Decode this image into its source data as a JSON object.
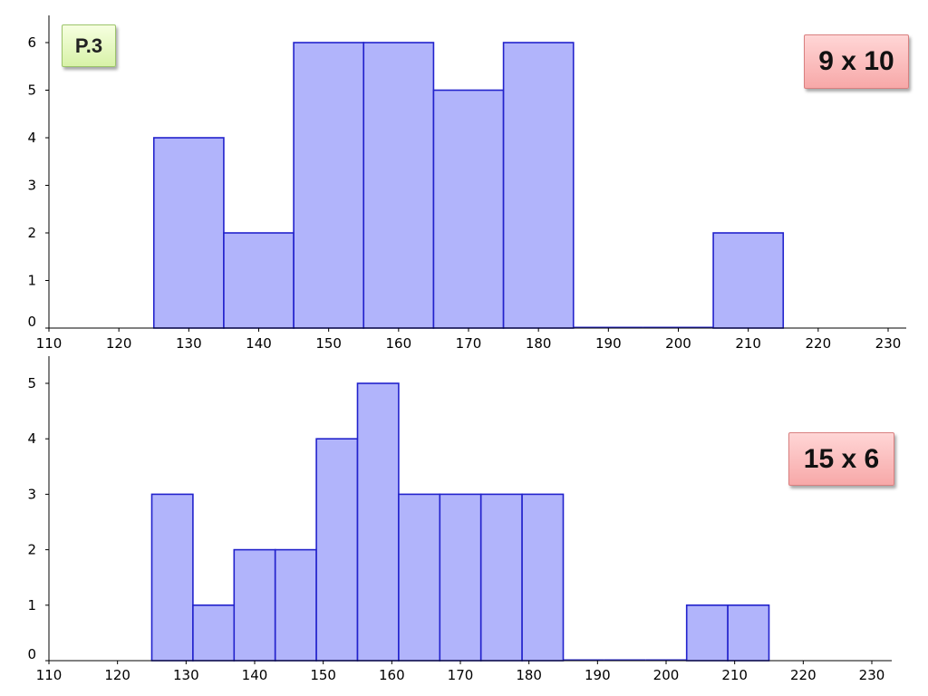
{
  "labels": {
    "page_tag": "P.3",
    "top_tag": "9 x 10",
    "bottom_tag": "15 x 6"
  },
  "colors": {
    "bar_fill": "#b1b4fb",
    "bar_stroke": "#2222cc",
    "axis": "#000000"
  },
  "chart_data": [
    {
      "type": "bar",
      "title": "",
      "xlabel": "",
      "ylabel": "",
      "xlim": [
        110,
        230
      ],
      "ylim": [
        0,
        6
      ],
      "x_ticks": [
        110,
        120,
        130,
        140,
        150,
        160,
        170,
        180,
        190,
        200,
        210,
        220,
        230
      ],
      "y_ticks": [
        0,
        1,
        2,
        3,
        4,
        5,
        6
      ],
      "bin_edges": [
        125,
        135,
        145,
        155,
        165,
        175,
        185,
        195,
        205,
        215
      ],
      "values": [
        4,
        2,
        6,
        6,
        5,
        6,
        0,
        0,
        2
      ],
      "grid": false
    },
    {
      "type": "bar",
      "title": "",
      "xlabel": "",
      "ylabel": "",
      "xlim": [
        110,
        230
      ],
      "ylim": [
        0,
        5
      ],
      "x_ticks": [
        110,
        120,
        130,
        140,
        150,
        160,
        170,
        180,
        190,
        200,
        210,
        220,
        230
      ],
      "y_ticks": [
        0,
        1,
        2,
        3,
        4,
        5
      ],
      "bin_edges": [
        125,
        131,
        137,
        143,
        149,
        155,
        161,
        167,
        173,
        179,
        185,
        191,
        197,
        203,
        209,
        215
      ],
      "values": [
        3,
        1,
        2,
        2,
        4,
        5,
        3,
        3,
        3,
        3,
        0,
        0,
        0,
        1,
        1
      ],
      "grid": false
    }
  ]
}
